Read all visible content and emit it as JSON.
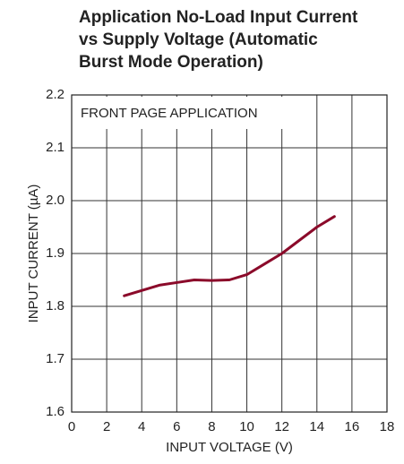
{
  "chart_data": {
    "type": "line",
    "title": [
      "Application No-Load Input Current",
      "vs Supply Voltage (Automatic",
      "Burst Mode Operation)"
    ],
    "annotation": "FRONT PAGE APPLICATION",
    "xlabel": "INPUT VOLTAGE (V)",
    "ylabel": "INPUT CURRENT (µA)",
    "x": [
      3,
      4,
      5,
      6,
      7,
      8,
      9,
      10,
      11,
      12,
      13,
      14,
      15
    ],
    "series": [
      {
        "name": "Input Current",
        "color": "#8b0a2a",
        "values": [
          1.82,
          1.83,
          1.84,
          1.845,
          1.85,
          1.849,
          1.85,
          1.86,
          1.88,
          1.9,
          1.925,
          1.95,
          1.97
        ]
      }
    ],
    "xlim": [
      0,
      18
    ],
    "xticks": [
      0,
      2,
      4,
      6,
      8,
      10,
      12,
      14,
      16,
      18
    ],
    "ylim": [
      1.6,
      2.2
    ],
    "yticks": [
      1.6,
      1.7,
      1.8,
      1.9,
      {
        "value": 2,
        "label": "2.0"
      },
      2.1,
      2.2
    ],
    "grid": true
  }
}
